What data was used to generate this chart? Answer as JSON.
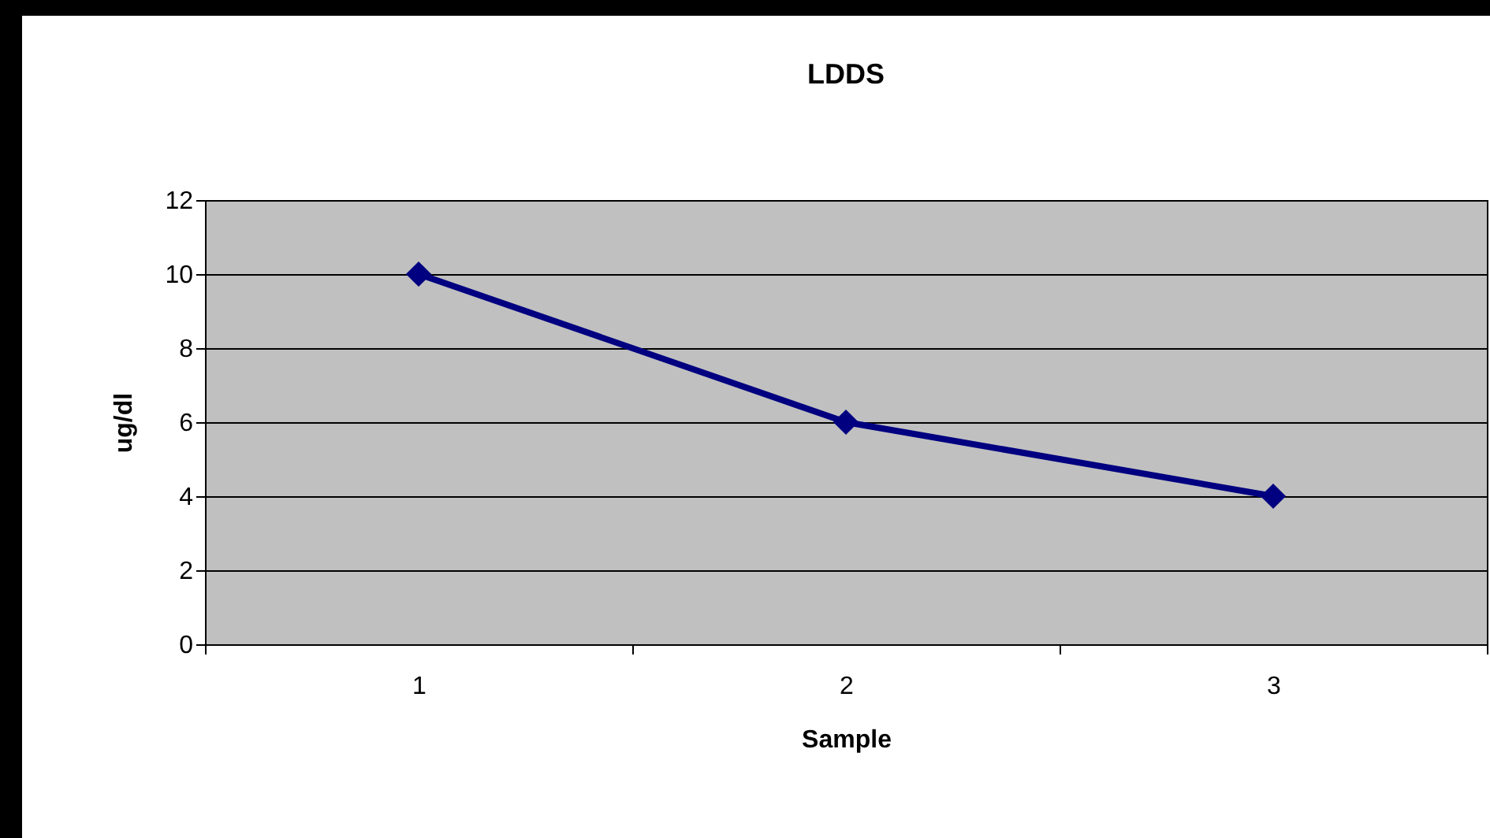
{
  "chart_data": {
    "type": "line",
    "title": "LDDS",
    "xlabel": "Sample",
    "ylabel": "ug/dl",
    "categories": [
      "1",
      "2",
      "3"
    ],
    "series": [
      {
        "color": "#000080",
        "values": [
          10,
          6,
          4
        ]
      }
    ],
    "ylim": [
      0,
      12
    ],
    "yticks": [
      0,
      2,
      4,
      6,
      8,
      10,
      12
    ],
    "grid": "y",
    "marker": "diamond",
    "line_style": "solid"
  }
}
